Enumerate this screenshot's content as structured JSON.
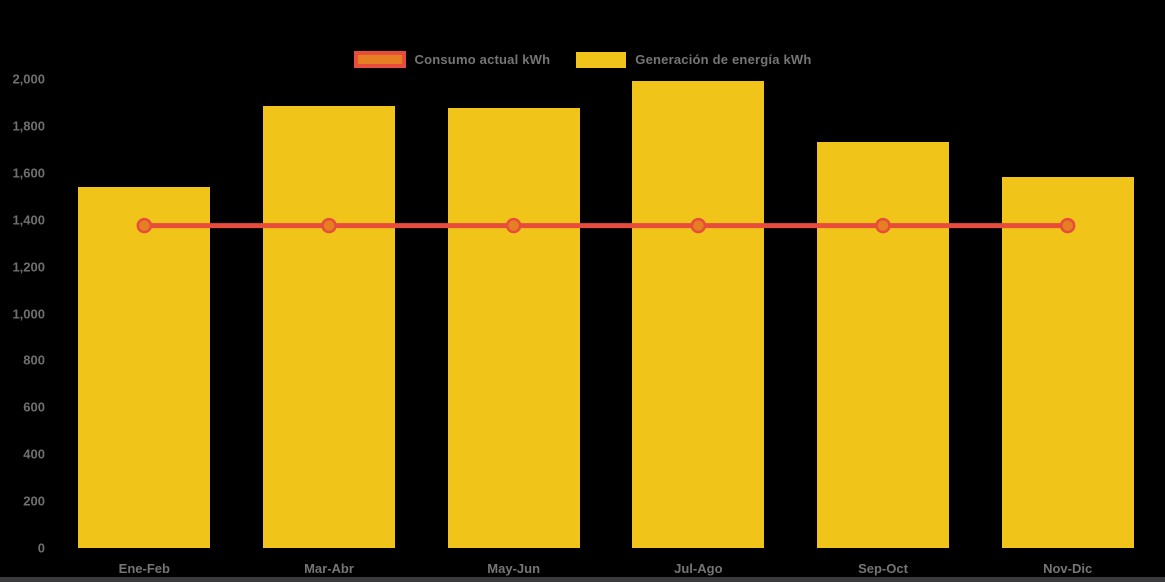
{
  "legend": {
    "items": [
      {
        "label": "Consumo actual kWh",
        "swatch_fill": "#E67E22",
        "swatch_border": "#E74C3C",
        "series_type": "line"
      },
      {
        "label": "Generación de energía kWh",
        "swatch_fill": "#F0C419",
        "swatch_border": "#F0C419",
        "series_type": "bar"
      }
    ]
  },
  "chart_data": {
    "type": "bar",
    "title": "",
    "xlabel": "",
    "ylabel": "",
    "categories": [
      "Ene-Feb",
      "Mar-Abr",
      "May-Jun",
      "Jul-Ago",
      "Sep-Oct",
      "Nov-Dic"
    ],
    "series": [
      {
        "name": "Consumo actual kWh",
        "type": "line",
        "color": "#E74C3C",
        "point_fill": "#E67E22",
        "point_border": "#E74C3C",
        "values": [
          1375,
          1375,
          1375,
          1375,
          1375,
          1375
        ]
      },
      {
        "name": "Generación de energía kWh",
        "type": "bar",
        "color": "#F0C419",
        "values": [
          1540,
          1885,
          1875,
          1990,
          1730,
          1580
        ]
      }
    ],
    "ylim": [
      0,
      2000
    ],
    "y_tick_values": [
      0,
      200,
      400,
      600,
      800,
      1000,
      1200,
      1400,
      1600,
      1800,
      2000
    ],
    "y_tick_labels": [
      "0",
      "200",
      "400",
      "600",
      "800",
      "1,000",
      "1,200",
      "1,400",
      "1,600",
      "1,800",
      "2,000"
    ],
    "grid": false,
    "legend_position": "top"
  },
  "colors": {
    "background": "#000000",
    "bar_fill": "#F0C419",
    "line_stroke": "#E74C3C",
    "marker_fill": "#E67E22",
    "axis_text": "#757575",
    "bottom_strip": "#3A3A3C"
  }
}
